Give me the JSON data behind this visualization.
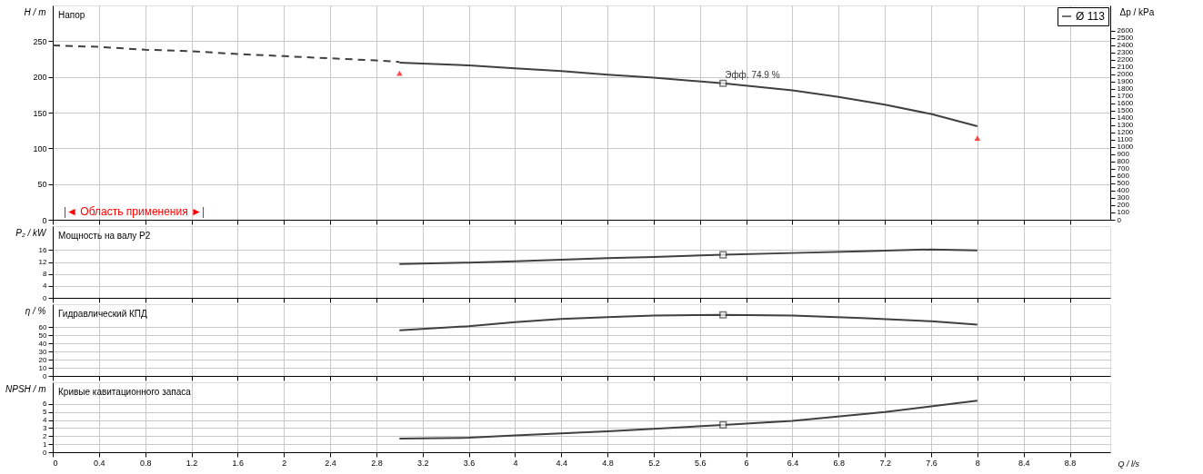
{
  "chart_data": [
    {
      "type": "line",
      "title": "Напор",
      "ylabel": "H / m",
      "y2label": "Δp / kPa",
      "xlim": [
        0,
        9.15
      ],
      "xticks": [
        0,
        0.4,
        0.8,
        1.2,
        1.6,
        2,
        2.4,
        2.8,
        3.2,
        3.6,
        4,
        4.4,
        4.8,
        5.2,
        5.6,
        6,
        6.4,
        6.8,
        7.2,
        7.6,
        8,
        8.4,
        8.8
      ],
      "ylim": [
        0,
        300
      ],
      "yticks": [
        0,
        50,
        100,
        150,
        200,
        250
      ],
      "y2lim": [
        0,
        2943
      ],
      "y2ticks": [
        0,
        100,
        200,
        300,
        400,
        500,
        600,
        700,
        800,
        900,
        1000,
        1100,
        1200,
        1300,
        1400,
        1500,
        1600,
        1700,
        1800,
        1900,
        2000,
        2100,
        2200,
        2300,
        2400,
        2500,
        2600
      ],
      "grid": true,
      "legend": "top right",
      "tick_labels": "y",
      "series": [
        {
          "name": "Ø 113",
          "color": "#404040",
          "x": [
            3,
            3.6,
            4,
            4.4,
            4.8,
            5.2,
            5.8,
            6.4,
            6.8,
            7.2,
            7.6,
            8
          ],
          "values": [
            220,
            216,
            212,
            208,
            203,
            199,
            191,
            181,
            172,
            161,
            148,
            131
          ]
        },
        {
          "color": "#404040",
          "line_style": "dashed",
          "x": [
            0,
            0.4,
            0.8,
            1.2,
            1.6,
            2,
            2.4,
            2.8,
            3
          ],
          "values": [
            244,
            242,
            238,
            236,
            232,
            229,
            226,
            223,
            221
          ]
        },
        {
          "type": "scatter",
          "marker": "square",
          "color": "#404040",
          "x": [
            5.8
          ],
          "values": [
            191
          ]
        },
        {
          "type": "scatter",
          "marker": "triangle",
          "color": "#ff0000",
          "x": [
            3,
            8
          ],
          "values": [
            204,
            113
          ]
        }
      ],
      "annotations": [
        {
          "text": "Эфф. 74.9 %",
          "x": 5.8,
          "y": 191
        },
        "|◄ Область применения ►|"
      ]
    },
    {
      "type": "line",
      "title": "Мощность на валу P2",
      "ylabel": "P₂ / kW",
      "xlim": [
        0,
        9.15
      ],
      "xticks": [
        0,
        0.4,
        0.8,
        1.2,
        1.6,
        2,
        2.4,
        2.8,
        3.2,
        3.6,
        4,
        4.4,
        4.8,
        5.2,
        5.6,
        6,
        6.4,
        6.8,
        7.2,
        7.6,
        8,
        8.4,
        8.8
      ],
      "ylim": [
        0,
        24
      ],
      "yticks": [
        0,
        4,
        8,
        12,
        16
      ],
      "grid": true,
      "tick_labels": "y",
      "series": [
        {
          "color": "#404040",
          "x": [
            3,
            3.6,
            4,
            4.8,
            5.2,
            5.8,
            6.4,
            7,
            7.6,
            8
          ],
          "values": [
            11.3,
            11.8,
            12.2,
            13.3,
            13.7,
            14.4,
            15.0,
            15.6,
            16.2,
            15.9
          ]
        },
        {
          "type": "scatter",
          "marker": "square",
          "color": "#404040",
          "x": [
            5.8
          ],
          "values": [
            14.4
          ]
        }
      ]
    },
    {
      "type": "line",
      "title": "Гидравлический КПД",
      "ylabel": "η / %",
      "xlim": [
        0,
        9.15
      ],
      "xticks": [
        0,
        0.4,
        0.8,
        1.2,
        1.6,
        2,
        2.4,
        2.8,
        3.2,
        3.6,
        4,
        4.4,
        4.8,
        5.2,
        5.6,
        6,
        6.4,
        6.8,
        7.2,
        7.6,
        8,
        8.4,
        8.8
      ],
      "ylim": [
        0,
        88
      ],
      "yticks": [
        0,
        10,
        20,
        30,
        40,
        50,
        60
      ],
      "grid": true,
      "tick_labels": "y",
      "series": [
        {
          "color": "#404040",
          "x": [
            3,
            3.6,
            4,
            4.4,
            4.8,
            5.2,
            5.8,
            6.4,
            7,
            7.6,
            8
          ],
          "values": [
            56,
            61,
            66,
            70,
            72,
            74,
            75,
            74,
            71,
            67,
            63
          ]
        },
        {
          "type": "scatter",
          "marker": "square",
          "color": "#404040",
          "x": [
            5.8
          ],
          "values": [
            74.9
          ]
        }
      ]
    },
    {
      "type": "line",
      "title": "Кривые кавитационного запаса",
      "ylabel": "NPSH / m",
      "xlabel": "Q / l/s",
      "xlim": [
        0,
        9.15
      ],
      "xticks": [
        0,
        0.4,
        0.8,
        1.2,
        1.6,
        2,
        2.4,
        2.8,
        3.2,
        3.6,
        4,
        4.4,
        4.8,
        5.2,
        5.6,
        6,
        6.4,
        6.8,
        7.2,
        7.6,
        8,
        8.4,
        8.8
      ],
      "ylim": [
        0,
        8.7
      ],
      "yticks": [
        0,
        1,
        2,
        3,
        4,
        5,
        6
      ],
      "grid": true,
      "series": [
        {
          "color": "#404040",
          "x": [
            3,
            3.6,
            4,
            4.8,
            5.2,
            5.8,
            6.4,
            7.2,
            7.6,
            8
          ],
          "values": [
            1.7,
            1.8,
            2.1,
            2.6,
            2.9,
            3.4,
            3.9,
            5.0,
            5.7,
            6.4
          ]
        },
        {
          "type": "scatter",
          "marker": "square",
          "color": "#404040",
          "x": [
            5.8
          ],
          "values": [
            3.4
          ]
        }
      ]
    }
  ]
}
